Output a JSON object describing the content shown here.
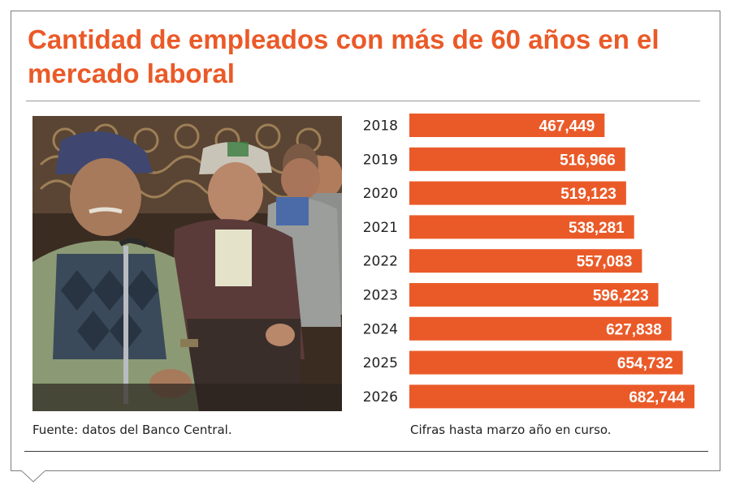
{
  "title": "Cantidad de empleados con más de 60 años en el mercado laboral",
  "photo_subject": "older-men-seated-photo",
  "source_note": "Fuente: datos del Banco Central.",
  "units_note": "Cifras hasta marzo año en curso.",
  "colors": {
    "accent": "#ea5a28",
    "bar": "#ea5a28",
    "bar_label": "#ffffff",
    "text": "#222222"
  },
  "chart_data": {
    "type": "bar",
    "orientation": "horizontal",
    "categories": [
      "2018",
      "2019",
      "2020",
      "2021",
      "2022",
      "2023",
      "2024",
      "2025",
      "2026"
    ],
    "values": [
      467449,
      516966,
      519123,
      538281,
      557083,
      596223,
      627838,
      654732,
      682744
    ],
    "value_labels": [
      "467,449",
      "516,966",
      "519,123",
      "538,281",
      "557,083",
      "596,223",
      "627,838",
      "654,732",
      "682,744"
    ],
    "title": "Cantidad de empleados con más de 60 años en el mercado laboral",
    "xlabel": "",
    "ylabel": "",
    "xlim": [
      0,
      682744
    ],
    "grid": false
  }
}
